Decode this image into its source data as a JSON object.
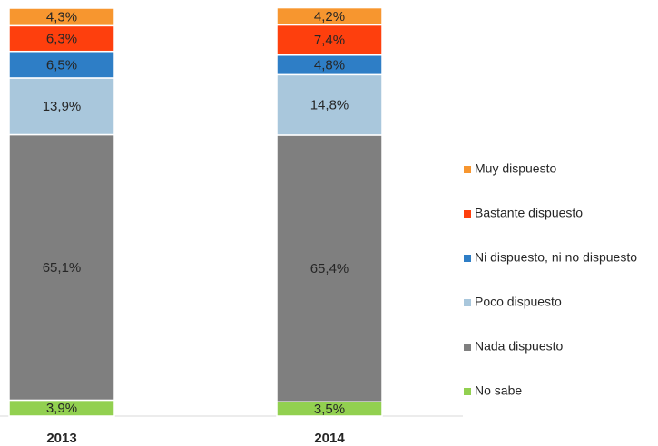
{
  "chart_data": {
    "type": "stacked_bar",
    "categories": [
      "2013",
      "2014"
    ],
    "series": [
      {
        "name": "No sabe",
        "color": "#92d050",
        "values": [
          3.9,
          3.5
        ],
        "value_labels": [
          "3,9%",
          "3,5%"
        ]
      },
      {
        "name": "Nada dispuesto",
        "color": "#7f7f7f",
        "values": [
          65.1,
          65.4
        ],
        "value_labels": [
          "65,1%",
          "65,4%"
        ]
      },
      {
        "name": "Poco dispuesto",
        "color": "#a9c7dc",
        "values": [
          13.9,
          14.8
        ],
        "value_labels": [
          "13,9%",
          "14,8%"
        ]
      },
      {
        "name": "Ni dispuesto, ni no dispuesto",
        "color": "#2e7ec6",
        "values": [
          6.5,
          4.8
        ],
        "value_labels": [
          "6,5%",
          "4,8%"
        ]
      },
      {
        "name": "Bastante dispuesto",
        "color": "#fe3f0d",
        "values": [
          6.3,
          7.4
        ],
        "value_labels": [
          "6,3%",
          "7,4%"
        ]
      },
      {
        "name": "Muy dispuesto",
        "color": "#f7962f",
        "values": [
          4.3,
          4.2
        ],
        "value_labels": [
          "4,3%",
          "4,2%"
        ]
      }
    ],
    "legend": "right"
  }
}
